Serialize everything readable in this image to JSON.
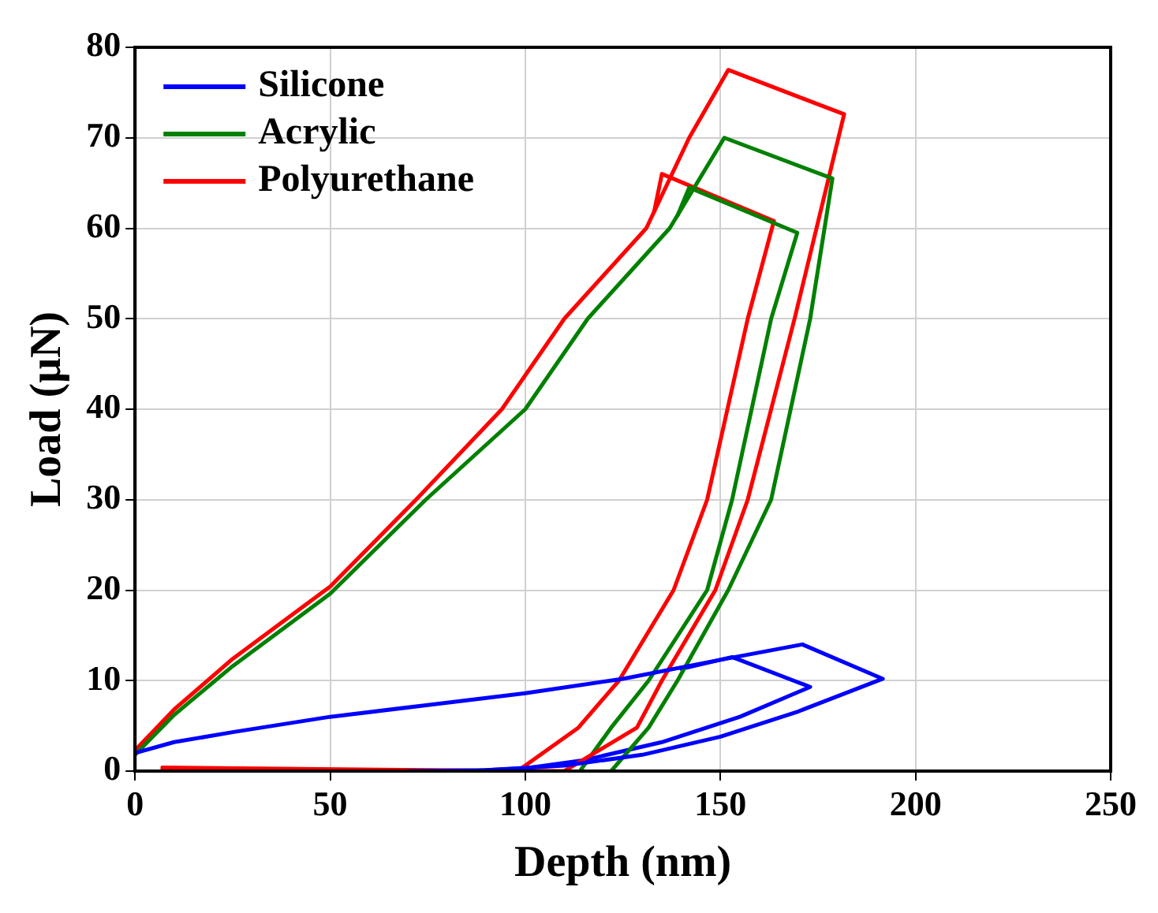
{
  "chart_data": {
    "type": "line",
    "xlabel": "Depth (nm)",
    "ylabel": "Load (μN)",
    "xlim": [
      0,
      250
    ],
    "xticks": [
      0,
      50,
      100,
      150,
      200,
      250
    ],
    "ylim": [
      0,
      80
    ],
    "yticks": [
      0,
      10,
      20,
      30,
      40,
      50,
      60,
      70,
      80
    ],
    "grid": true,
    "legend": "top left",
    "marker": "none",
    "line_style": "solid",
    "series": [
      {
        "name": "Silicone",
        "color": "#0000ff",
        "x": [
          0,
          10,
          25,
          50,
          75,
          100,
          125,
          150,
          171,
          191.6,
          170,
          150,
          130,
          110,
          90,
          70
        ],
        "values": [
          2,
          3.2,
          4.3,
          6,
          7.3,
          8.6,
          10.2,
          12.3,
          14,
          10.2,
          6.6,
          3.8,
          1.8,
          0.6,
          0.1,
          0
        ]
      },
      {
        "name": "Acrylic",
        "color": "#008000",
        "x": [
          0,
          10,
          25,
          50,
          74.5,
          100,
          116,
          137,
          151,
          178.7,
          173,
          163,
          152,
          139,
          131.6,
          122
        ],
        "values": [
          1.8,
          6.2,
          11.6,
          19.6,
          30,
          40,
          50,
          60,
          70,
          65.5,
          50,
          30,
          20,
          10,
          4.8,
          0
        ]
      },
      {
        "name": "Polyurethane",
        "color": "#ff0000",
        "x": [
          0,
          10,
          25,
          50,
          72,
          94,
          110,
          131,
          142,
          152,
          181.7,
          169,
          157,
          148.7,
          135,
          128.6,
          110,
          7
        ],
        "values": [
          2.3,
          6.8,
          12.4,
          20.4,
          30,
          40,
          50,
          60,
          70,
          77.5,
          72.6,
          50,
          30,
          20,
          10,
          4.8,
          0,
          0.2
        ]
      },
      {
        "color": "#0000ff",
        "x": [
          140,
          153,
          173,
          155,
          135,
          115,
          100,
          85
        ],
        "values": [
          11.3,
          12.6,
          9.3,
          6,
          3.2,
          1.2,
          0.3,
          0
        ]
      },
      {
        "color": "#008000",
        "x": [
          139,
          142,
          169.7,
          163,
          153,
          146.6,
          131.6,
          122,
          114
        ],
        "values": [
          61.4,
          64.5,
          59.5,
          50,
          30,
          20,
          10,
          4.8,
          0
        ]
      },
      {
        "color": "#ff0000",
        "x": [
          133,
          135,
          163.7,
          157,
          146.6,
          138,
          124,
          113.6,
          98,
          7
        ],
        "values": [
          61.8,
          66,
          60.8,
          50,
          30,
          20,
          10,
          4.8,
          0,
          0.4
        ]
      }
    ]
  }
}
